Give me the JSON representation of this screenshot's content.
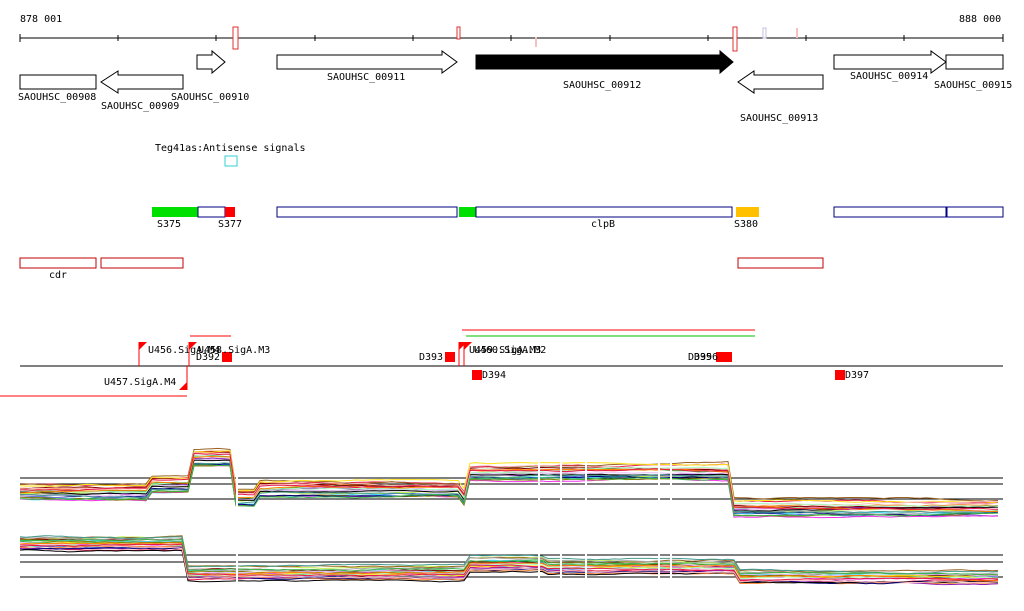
{
  "coords": {
    "start": "878 001",
    "end": "888 000"
  },
  "genes": {
    "g0908": "SAOUHSC_00908",
    "g0909": "SAOUHSC_00909",
    "g0910": "SAOUHSC_00910",
    "g0911": "SAOUHSC_00911",
    "g0912": "SAOUHSC_00912",
    "g0913": "SAOUHSC_00913",
    "g0914": "SAOUHSC_00914",
    "g0915": "SAOUHSC_00915"
  },
  "antisense": {
    "label": "Teg41as:Antisense signals"
  },
  "features": {
    "s375": "S375",
    "s377": "S377",
    "clpb": "clpB",
    "s380": "S380",
    "cdr": "cdr"
  },
  "signals": {
    "u456": "U456.SigA.M4",
    "u458": "U458.SigA.M3",
    "d392": "D392",
    "u457": "U457.SigA.M4",
    "d393": "D393",
    "u459": "U459.SigA.M3",
    "u460": "U460.SigA.M2",
    "d394": "D394",
    "d395": "D395",
    "d396": "D396",
    "d397": "D397"
  },
  "colors": {
    "green": "#00e000",
    "red": "#ff0000",
    "orange": "#ffc000",
    "navy": "#000080",
    "cyan": "#30d0d0",
    "darkred": "#c00000"
  }
}
